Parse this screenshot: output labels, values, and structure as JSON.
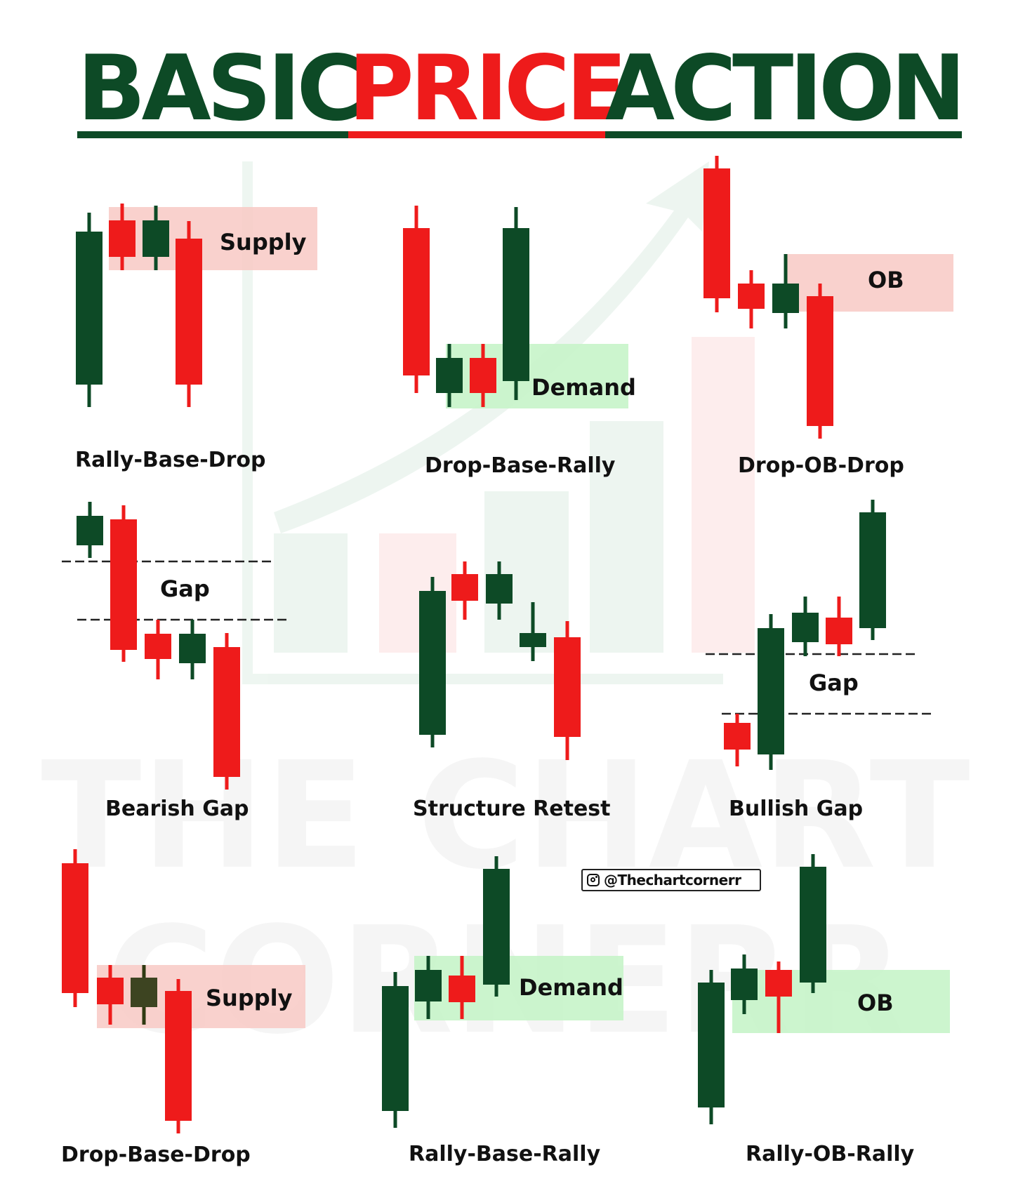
{
  "title": {
    "word1": "BASIC",
    "word2": "PRICE",
    "word3": "ACTION"
  },
  "colors": {
    "bull": "#0d4a26",
    "bear": "#ee1b1b",
    "supply_zone": "#f8c9c4",
    "demand_zone": "#c6f4c9",
    "accent_green": "#0d4a26",
    "accent_red": "#ee1b1b"
  },
  "watermark": {
    "line1": "THE CHART",
    "line2": "CORNERR"
  },
  "handle": {
    "icon": "instagram-icon",
    "text": "@Thechartcornerr"
  },
  "patterns": [
    {
      "label": "Rally-Base-Drop",
      "zone": "Supply"
    },
    {
      "label": "Drop-Base-Rally",
      "zone": "Demand"
    },
    {
      "label": "Drop-OB-Drop",
      "zone": "OB"
    },
    {
      "label": "Bearish Gap",
      "zone": "Gap"
    },
    {
      "label": "Structure Retest",
      "zone": ""
    },
    {
      "label": "Bullish Gap",
      "zone": "Gap"
    },
    {
      "label": "Drop-Base-Drop",
      "zone": "Supply"
    },
    {
      "label": "Rally-Base-Rally",
      "zone": "Demand"
    },
    {
      "label": "Rally-OB-Rally",
      "zone": "OB"
    }
  ]
}
